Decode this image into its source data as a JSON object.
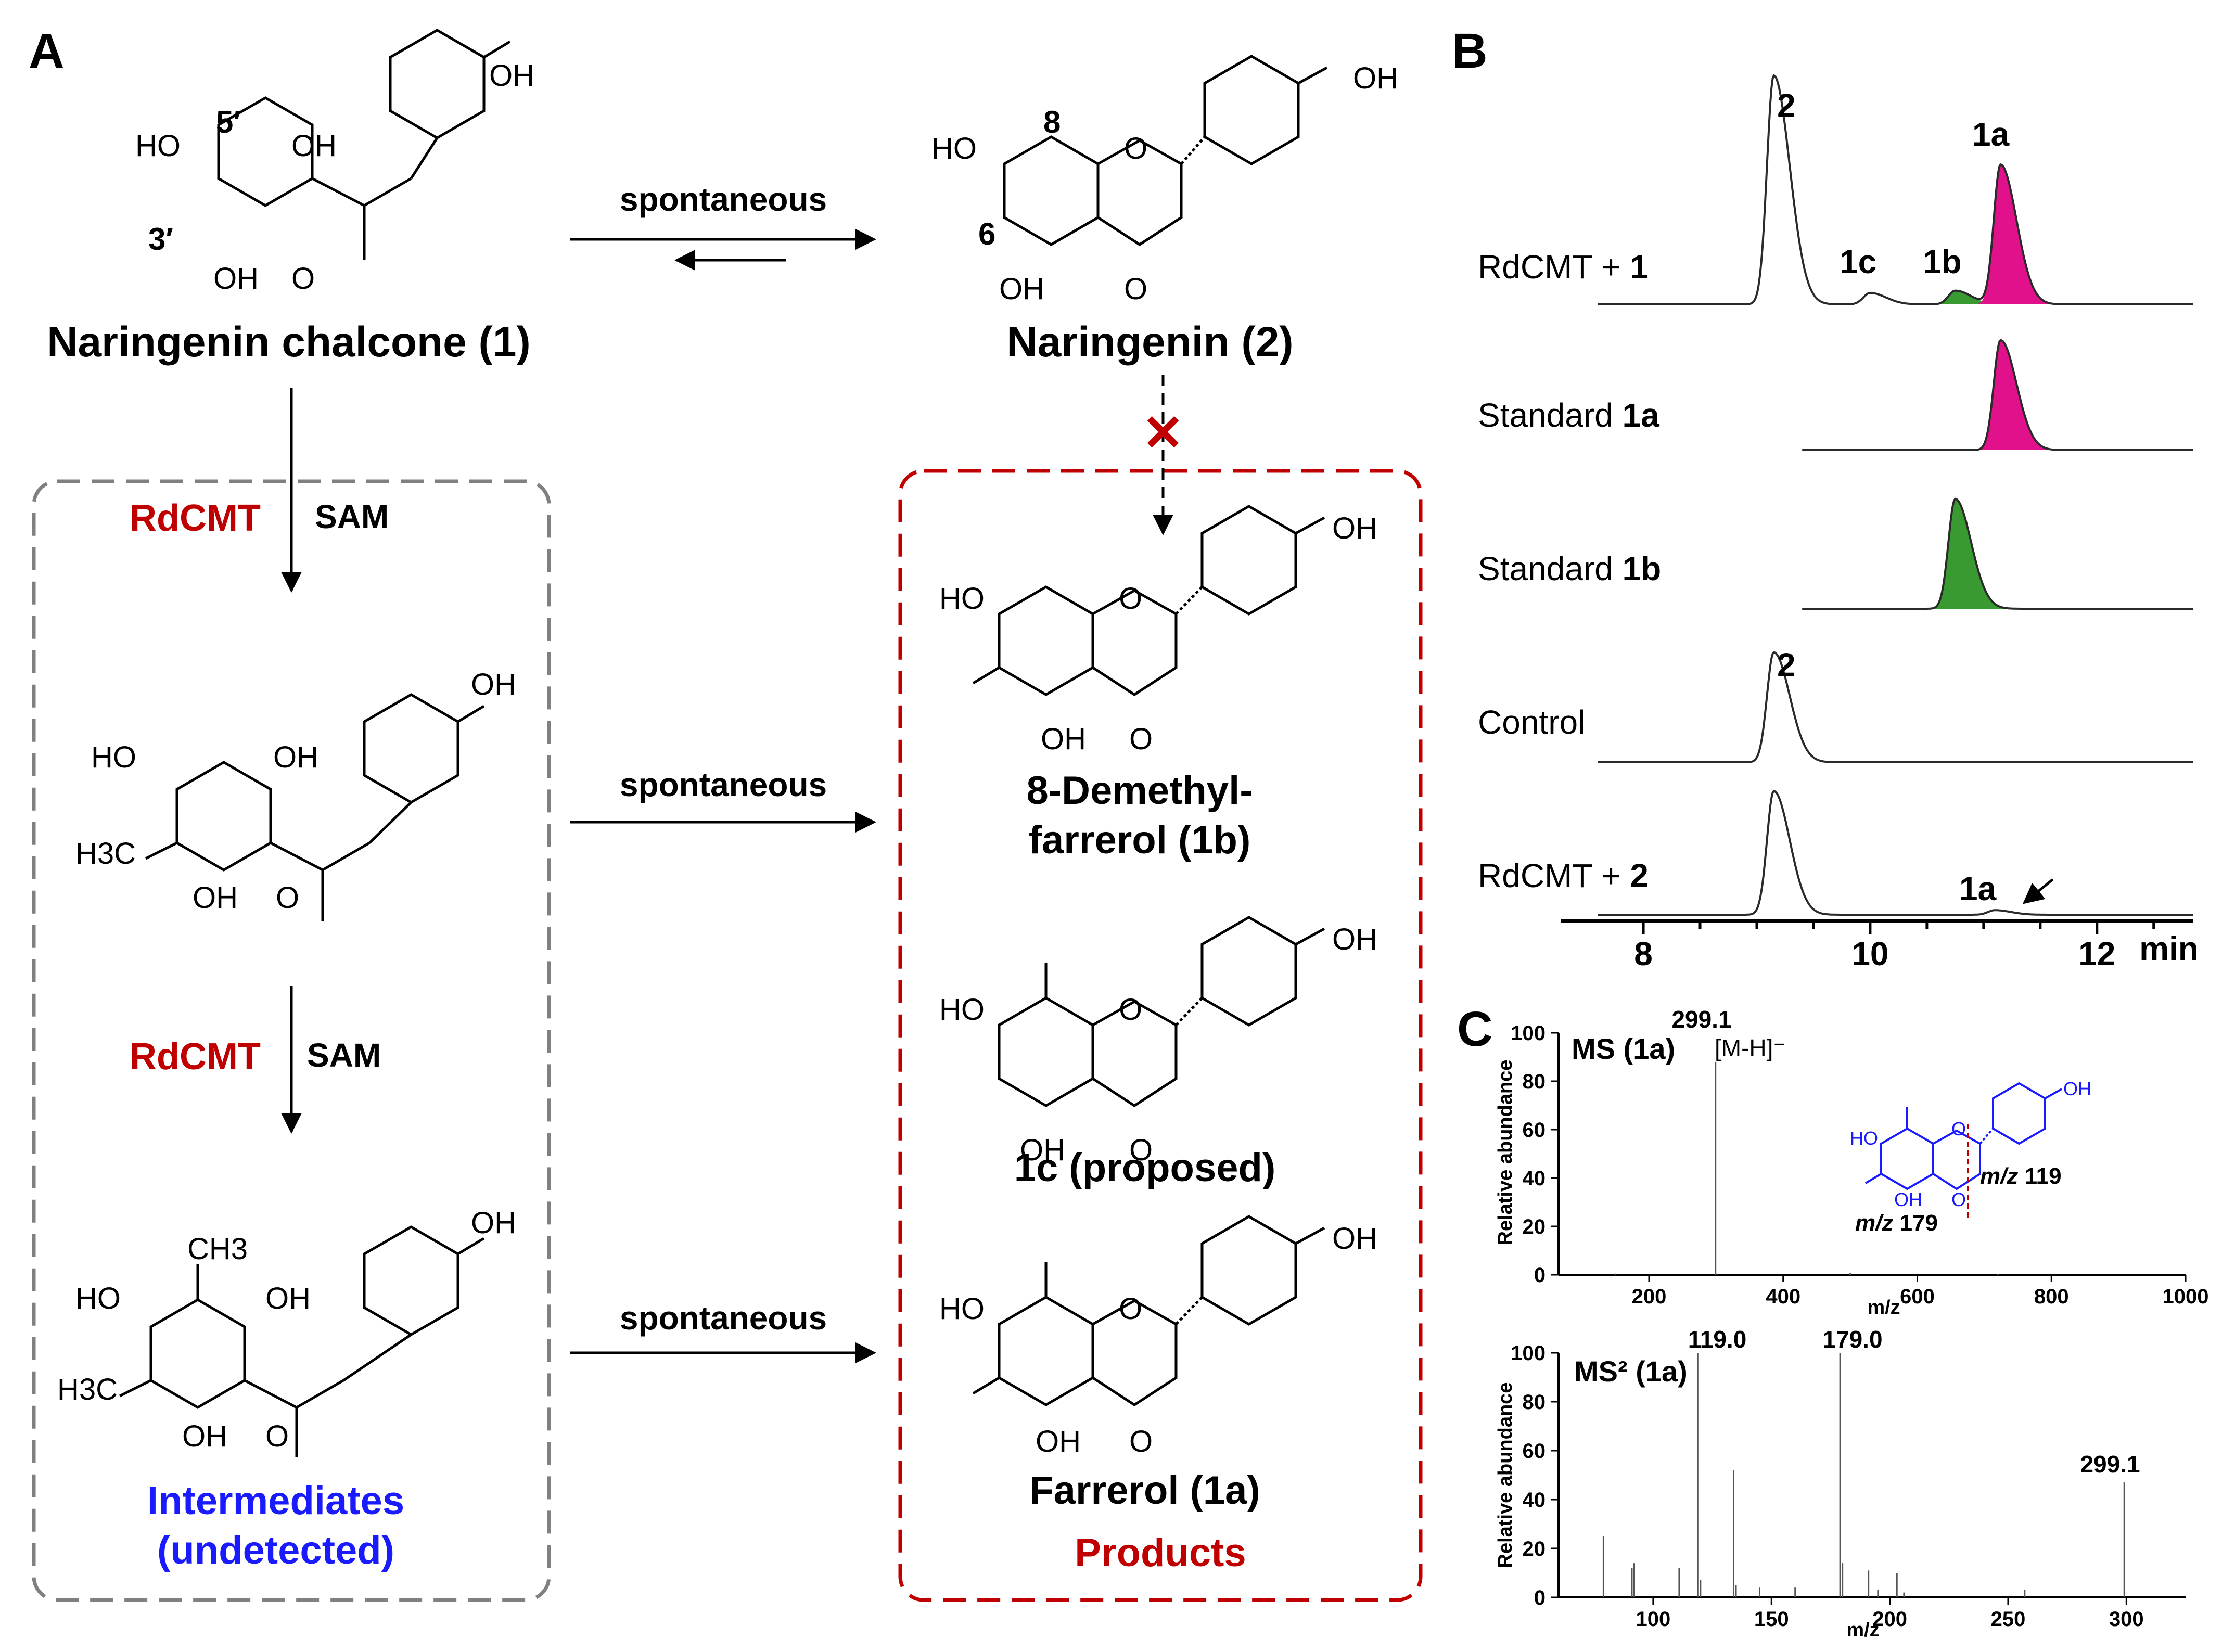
{
  "panels": {
    "A": {
      "label": "A",
      "arrow_labels": {
        "spontaneous": "spontaneous",
        "enzyme": "RdCMT",
        "cofactor": "SAM"
      },
      "compounds": {
        "chalcone_name": "Naringenin chalcone (1)",
        "naringenin_name": "Naringenin (2)",
        "demethylfarrerol_line1": "8-Demethyl-",
        "demethylfarrerol_line2": "farrerol (1b)",
        "c1c_name": "1c (proposed)",
        "farrerol_name": "Farrerol (1a)"
      },
      "groups": {
        "intermediates_line1": "Intermediates",
        "intermediates_line2": "(undetected)",
        "products": "Products"
      },
      "position_labels": [
        "5′",
        "3′",
        "8",
        "6"
      ],
      "atom_labels": {
        "OH": "OH",
        "HO": "HO",
        "O": "O",
        "H3C": "H3C",
        "CH3": "CH3"
      },
      "blocked_mark": "✕",
      "colors": {
        "enzyme": "#c00000",
        "intermediates": "#1a1aff",
        "products": "#c00000",
        "dashed_box_left": "#808080",
        "dashed_box_right": "#c00000"
      }
    },
    "B": {
      "label": "B",
      "x_axis_unit": "min",
      "x_ticks": [
        "8",
        "10",
        "12"
      ],
      "traces": [
        {
          "label_prefix": "RdCMT + ",
          "label_bold": "1"
        },
        {
          "label_prefix": "Standard ",
          "label_bold": "1a"
        },
        {
          "label_prefix": "Standard ",
          "label_bold": "1b"
        },
        {
          "label_prefix": "Control",
          "label_bold": ""
        },
        {
          "label_prefix": "RdCMT + ",
          "label_bold": "2"
        }
      ],
      "peak_labels": {
        "p2": "2",
        "p1c": "1c",
        "p1b": "1b",
        "p1a": "1a"
      },
      "colors": {
        "peak_1a": "#e0118a",
        "peak_1b": "#3a9a32"
      }
    },
    "C": {
      "label": "C",
      "y_label": "Relative abundance",
      "x_label": "m/z",
      "ms1": {
        "title": "MS (1a)",
        "ion_label": "[M-H]⁻",
        "peak_label": "299.1",
        "x_ticks": [
          "200",
          "400",
          "600",
          "800",
          "1000"
        ],
        "y_ticks": [
          "0",
          "20",
          "40",
          "60",
          "80",
          "100"
        ],
        "fragment_labels": {
          "mz_prefix": "m/z",
          "f119": "119",
          "f179": "179"
        }
      },
      "ms2": {
        "title": "MS² (1a)",
        "peak_labels": [
          "119.0",
          "179.0",
          "299.1"
        ],
        "x_ticks": [
          "100",
          "150",
          "200",
          "250",
          "300"
        ],
        "y_ticks": [
          "0",
          "20",
          "40",
          "60",
          "80",
          "100"
        ]
      },
      "colors": {
        "structure": "#1a1aff",
        "cleavage": "#c00000"
      }
    }
  },
  "chart_data": [
    {
      "type": "line",
      "title": "",
      "xlabel": "min",
      "ylabel": "",
      "xlim": [
        7.55,
        12.85
      ],
      "series": [
        {
          "name": "RdCMT + 1",
          "peaks": [
            {
              "x": 9.15,
              "label": "2",
              "rel_height": 1.0
            },
            {
              "x": 10.0,
              "label": "1c",
              "rel_height": 0.05
            },
            {
              "x": 10.75,
              "label": "1b",
              "rel_height": 0.06
            },
            {
              "x": 11.15,
              "label": "1a",
              "rel_height": 0.61
            }
          ]
        },
        {
          "name": "Standard 1a",
          "peaks": [
            {
              "x": 11.15,
              "label": "1a",
              "rel_height": 0.48
            }
          ]
        },
        {
          "name": "Standard 1b",
          "peaks": [
            {
              "x": 10.75,
              "label": "1b",
              "rel_height": 0.48
            }
          ]
        },
        {
          "name": "Control",
          "peaks": [
            {
              "x": 9.15,
              "label": "2",
              "rel_height": 0.48
            }
          ]
        },
        {
          "name": "RdCMT + 2",
          "peaks": [
            {
              "x": 9.15,
              "label": "2",
              "rel_height": 0.54
            },
            {
              "x": 11.1,
              "label": "1a",
              "rel_height": 0.02
            }
          ]
        }
      ]
    },
    {
      "type": "bar",
      "title": "MS (1a)",
      "xlabel": "m/z",
      "ylabel": "Relative abundance",
      "xlim": [
        100,
        1000
      ],
      "ylim": [
        0,
        100
      ],
      "x": [
        150,
        299.1,
        500,
        720
      ],
      "values": [
        0.5,
        88,
        0.7,
        0.4
      ]
    },
    {
      "type": "bar",
      "title": "MS² (1a)",
      "xlabel": "m/z",
      "ylabel": "Relative abundance",
      "xlim": [
        60,
        325
      ],
      "ylim": [
        0,
        100
      ],
      "x": [
        79,
        91,
        92,
        111,
        119,
        120,
        134,
        135,
        145,
        160,
        179,
        180,
        191,
        195,
        203,
        206,
        257,
        299.1
      ],
      "values": [
        25,
        12,
        14,
        12,
        100,
        7,
        52,
        5,
        4,
        4,
        100,
        14,
        11,
        3,
        10,
        2,
        3,
        47
      ]
    }
  ]
}
